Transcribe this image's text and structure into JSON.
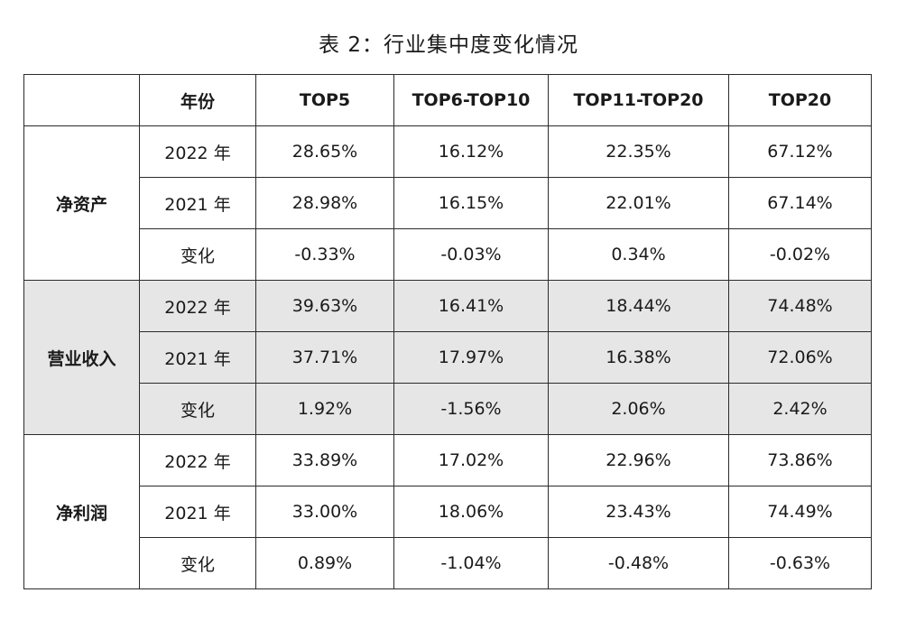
{
  "caption": "表 2：行业集中度变化情况",
  "table": {
    "header": {
      "corner": "",
      "year": "年份",
      "top5": "TOP5",
      "top6_10": "TOP6-TOP10",
      "top11_20": "TOP11-TOP20",
      "top20": "TOP20"
    },
    "groups": [
      {
        "name": "净资产",
        "shaded": false,
        "rows": [
          {
            "year": "2022 年",
            "top5": "28.65%",
            "top6_10": "16.12%",
            "top11_20": "22.35%",
            "top20": "67.12%"
          },
          {
            "year": "2021 年",
            "top5": "28.98%",
            "top6_10": "16.15%",
            "top11_20": "22.01%",
            "top20": "67.14%"
          },
          {
            "year": "变化",
            "top5": "-0.33%",
            "top6_10": "-0.03%",
            "top11_20": "0.34%",
            "top20": "-0.02%"
          }
        ]
      },
      {
        "name": "营业收入",
        "shaded": true,
        "rows": [
          {
            "year": "2022 年",
            "top5": "39.63%",
            "top6_10": "16.41%",
            "top11_20": "18.44%",
            "top20": "74.48%"
          },
          {
            "year": "2021 年",
            "top5": "37.71%",
            "top6_10": "17.97%",
            "top11_20": "16.38%",
            "top20": "72.06%"
          },
          {
            "year": "变化",
            "top5": "1.92%",
            "top6_10": "-1.56%",
            "top11_20": "2.06%",
            "top20": "2.42%"
          }
        ]
      },
      {
        "name": "净利润",
        "shaded": false,
        "rows": [
          {
            "year": "2022 年",
            "top5": "33.89%",
            "top6_10": "17.02%",
            "top11_20": "22.96%",
            "top20": "73.86%"
          },
          {
            "year": "2021 年",
            "top5": "33.00%",
            "top6_10": "18.06%",
            "top11_20": "23.43%",
            "top20": "74.49%"
          },
          {
            "year": "变化",
            "top5": "0.89%",
            "top6_10": "-1.04%",
            "top11_20": "-0.48%",
            "top20": "-0.63%"
          }
        ]
      }
    ]
  }
}
